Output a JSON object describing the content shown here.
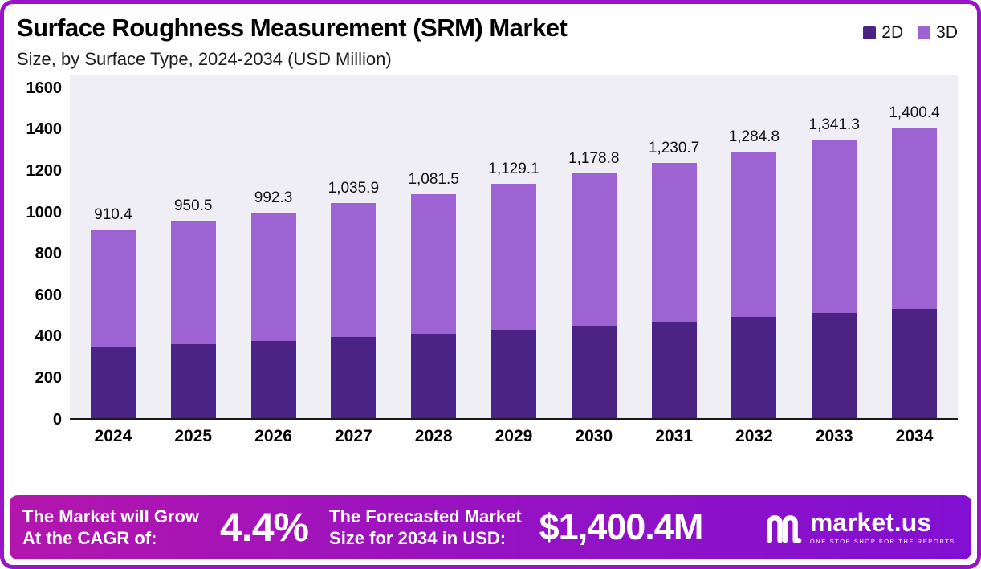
{
  "header": {
    "title": "Surface Roughness Measurement (SRM) Market",
    "subtitle": "Size, by Surface Type, 2024-2034 (USD Million)"
  },
  "legend": [
    {
      "label": "2D",
      "color": "#4b2384"
    },
    {
      "label": "3D",
      "color": "#9e63d2"
    }
  ],
  "chart_data": {
    "type": "bar",
    "stacked": true,
    "title": "Surface Roughness Measurement (SRM) Market Size, by Surface Type, 2024-2034 (USD Million)",
    "categories": [
      "2024",
      "2025",
      "2026",
      "2027",
      "2028",
      "2029",
      "2030",
      "2031",
      "2032",
      "2033",
      "2034"
    ],
    "series": [
      {
        "name": "2D",
        "color": "#4b2384",
        "values": [
          340,
          356,
          372,
          390,
          407,
          425,
          446,
          465,
          486,
          507,
          527
        ]
      },
      {
        "name": "3D",
        "color": "#9e63d2",
        "values": [
          570.4,
          594.5,
          620.3,
          645.9,
          674.5,
          704.1,
          732.8,
          765.7,
          798.8,
          834.3,
          873.4
        ]
      }
    ],
    "totals": [
      910.4,
      950.5,
      992.3,
      1035.9,
      1081.5,
      1129.1,
      1178.8,
      1230.7,
      1284.8,
      1341.3,
      1400.4
    ],
    "total_labels": [
      "910.4",
      "950.5",
      "992.3",
      "1,035.9",
      "1,081.5",
      "1,129.1",
      "1,178.8",
      "1,230.7",
      "1,284.8",
      "1,341.3",
      "1,400.4"
    ],
    "xlabel": "",
    "ylabel": "",
    "ylim": [
      0,
      1600
    ],
    "yticks": [
      0,
      200,
      400,
      600,
      800,
      1000,
      1200,
      1400,
      1600
    ],
    "grid": false,
    "legend_position": "top-right"
  },
  "banner": {
    "cagr_label_line1": "The Market will Grow",
    "cagr_label_line2": "At the CAGR of:",
    "cagr_value": "4.4%",
    "forecast_label_line1": "The Forecasted Market",
    "forecast_label_line2": "Size for 2034 in USD:",
    "forecast_value": "$1,400.4M",
    "logo_text": "market.us",
    "logo_tagline": "ONE STOP SHOP FOR THE REPORTS"
  },
  "colors": {
    "series_2d": "#4b2384",
    "series_3d": "#9e63d2",
    "plot_background": "#f0eef5",
    "banner_gradient_start": "#b316ad",
    "banner_gradient_end": "#8210d2",
    "frame_border": "#9b13c9"
  }
}
